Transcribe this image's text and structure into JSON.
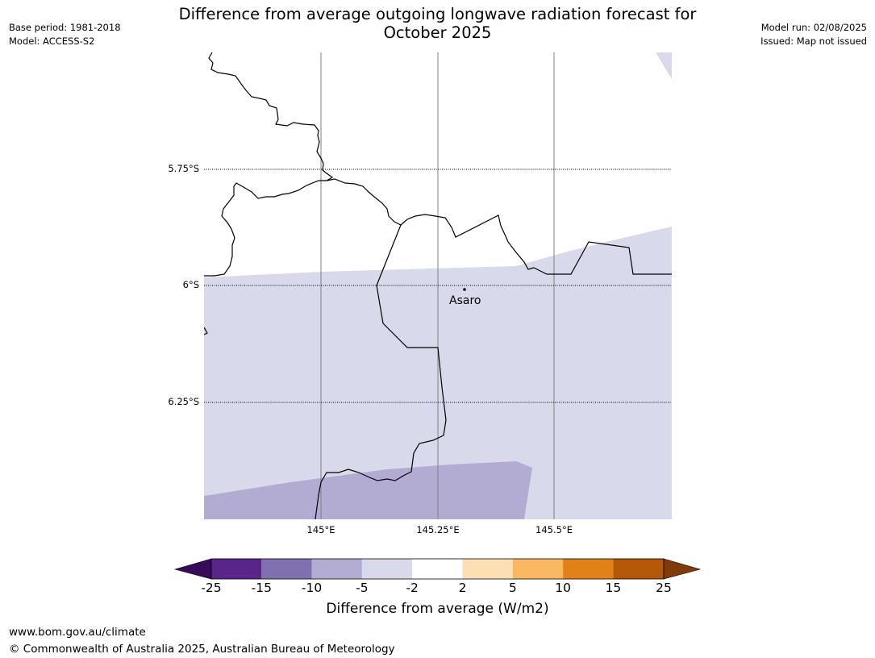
{
  "header": {
    "title_line1": "Difference from average outgoing longwave radiation forecast for",
    "title_line2": "October 2025",
    "base_period": "Base period: 1981-2018",
    "model": "Model: ACCESS-S2",
    "model_run": "Model run: 02/08/2025",
    "issued": "Issued: Map not issued"
  },
  "map": {
    "lat_labels": [
      "5.75°S",
      "6°S",
      "6.25°S"
    ],
    "lon_labels": [
      "145°E",
      "145.25°E",
      "145.5°E"
    ],
    "place": "Asaro",
    "colors": {
      "land_white": "#ffffff",
      "band_m5_m2": "#d8d9ea",
      "band_m10_m5": "#b2acd2"
    }
  },
  "colorbar": {
    "label": "Difference from average (W/m2)",
    "ticks": [
      "-25",
      "-15",
      "-10",
      "-5",
      "-2",
      "2",
      "5",
      "10",
      "15",
      "25"
    ],
    "colors": [
      "#5a2488",
      "#8170b0",
      "#b2acd2",
      "#d8d9ea",
      "#ffffff",
      "#fddfb5",
      "#fbb862",
      "#e08217",
      "#b35807"
    ],
    "under_color": "#3a0a5a",
    "over_color": "#7f3b08"
  },
  "footer": {
    "url": "www.bom.gov.au/climate",
    "copyright": "© Commonwealth of Australia 2025, Australian Bureau of Meteorology"
  }
}
